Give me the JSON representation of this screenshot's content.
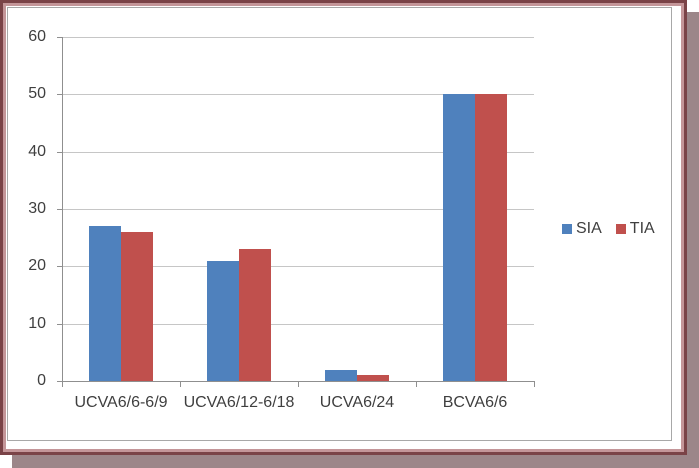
{
  "frame": {
    "outer_border_color": "#7a4347",
    "inner_border_color": "#c49699",
    "shadow_color": "#9c8689",
    "chart_area_border_color": "#a8a8a8",
    "background_color": "#ffffff"
  },
  "chart_data": {
    "type": "bar",
    "title": "",
    "xlabel": "",
    "ylabel": "",
    "categories": [
      "UCVA6/6-6/9",
      "UCVA6/12-6/18",
      "UCVA6/24",
      "BCVA6/6"
    ],
    "series": [
      {
        "name": "SIA",
        "color": "#4f81bd",
        "values": [
          27,
          21,
          2,
          50
        ]
      },
      {
        "name": "TIA",
        "color": "#c0504d",
        "values": [
          26,
          23,
          1,
          50
        ]
      }
    ],
    "ylim": [
      0,
      60
    ],
    "yticks": [
      0,
      10,
      20,
      30,
      40,
      50,
      60
    ],
    "grid": true,
    "legend_position": "right",
    "gridline_color": "#c6c6c6",
    "axis_color": "#8f8f8f",
    "text_color": "#3f3f3f"
  }
}
